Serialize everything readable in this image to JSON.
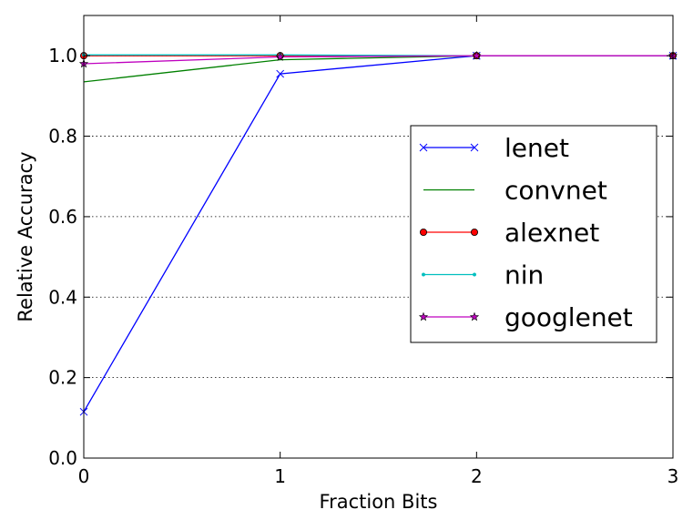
{
  "chart_data": {
    "type": "line",
    "xlabel": "Fraction Bits",
    "ylabel": "Relative Accuracy",
    "x": [
      0,
      1,
      2,
      3
    ],
    "xlim": [
      0,
      3
    ],
    "ylim": [
      0.0,
      1.1
    ],
    "xticks": [
      "0",
      "1",
      "2",
      "3"
    ],
    "yticks": [
      "0.0",
      "0.2",
      "0.4",
      "0.6",
      "0.8",
      "1.0"
    ],
    "grid": "y-dotted",
    "legend_position": "center-right",
    "series": [
      {
        "name": "lenet",
        "values": [
          0.115,
          0.955,
          1.0,
          1.0
        ],
        "color": "#0000ff",
        "marker": "x"
      },
      {
        "name": "convnet",
        "values": [
          0.935,
          0.99,
          1.0,
          1.0
        ],
        "color": "#008000",
        "marker": "none"
      },
      {
        "name": "alexnet",
        "values": [
          1.0,
          1.0,
          1.0,
          1.0
        ],
        "color": "#ff0000",
        "marker": "circle"
      },
      {
        "name": "nin",
        "values": [
          1.002,
          1.002,
          1.0,
          1.0
        ],
        "color": "#00bfbf",
        "marker": "point"
      },
      {
        "name": "googlenet",
        "values": [
          0.98,
          0.997,
          1.0,
          1.0
        ],
        "color": "#bf00bf",
        "marker": "star"
      }
    ]
  }
}
